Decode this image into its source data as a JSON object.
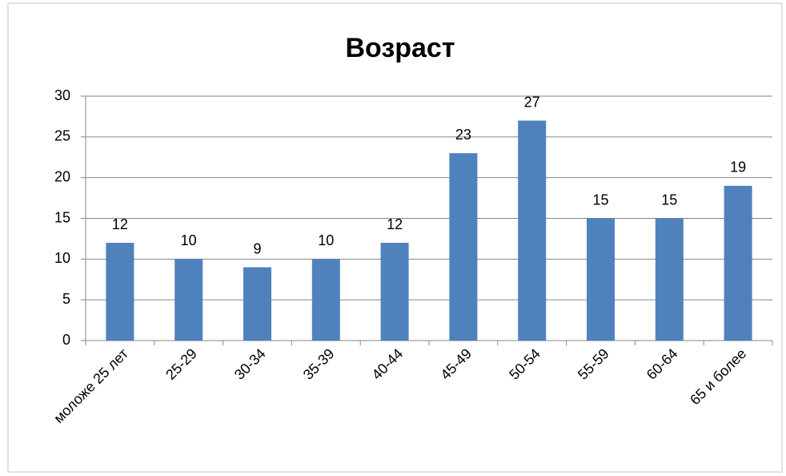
{
  "chart_data": {
    "type": "bar",
    "title": "Возраст",
    "categories": [
      "моложе 25 лет",
      "25-29",
      "30-34",
      "35-39",
      "40-44",
      "45-49",
      "50-54",
      "55-59",
      "60-64",
      "65 и более"
    ],
    "values": [
      12,
      10,
      9,
      10,
      12,
      23,
      27,
      15,
      15,
      19
    ],
    "color": "#4f81bd",
    "ylim": [
      0,
      30
    ],
    "yticks": [
      0,
      5,
      10,
      15,
      20,
      25,
      30
    ],
    "grid": true
  }
}
